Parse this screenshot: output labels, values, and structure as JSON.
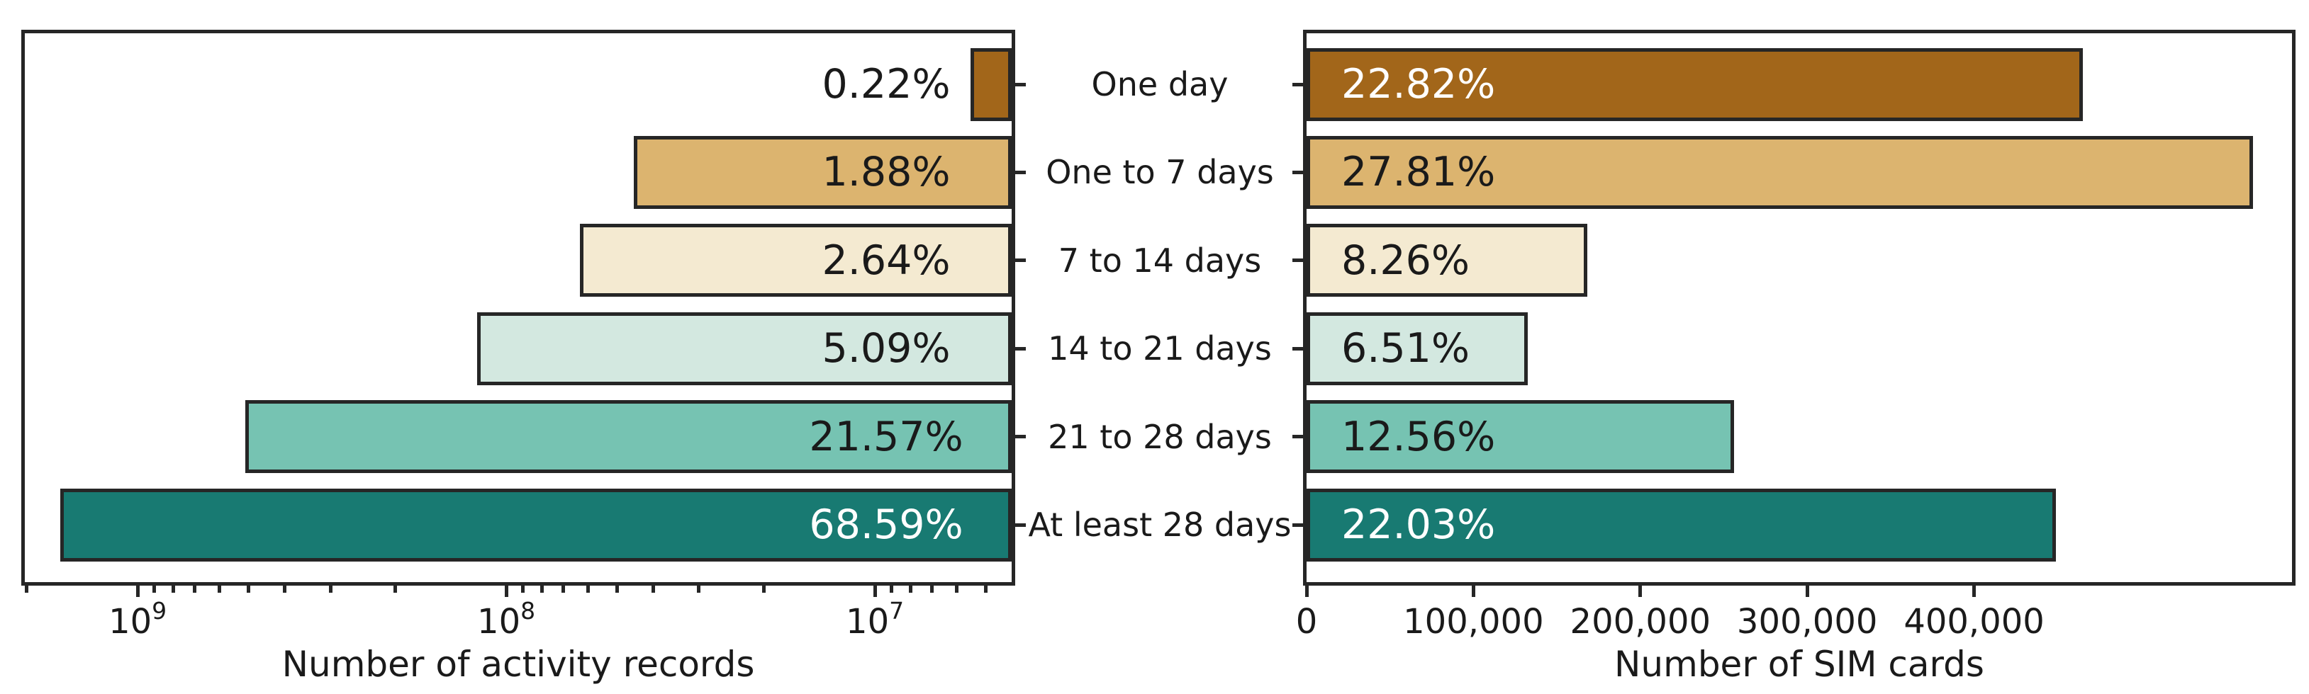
{
  "figure": {
    "background": "#ffffff",
    "outline_color": "#262626",
    "text_color": "#1a1a1a",
    "bar_colors": [
      "#a2661a",
      "#dcb46f",
      "#f4ead1",
      "#d3e8e0",
      "#76c3b2",
      "#187a72"
    ],
    "categories": [
      "One day",
      "One to 7 days",
      "7 to 14 days",
      "14 to 21 days",
      "21 to 28 days",
      "At least 28 days"
    ]
  },
  "chart_data": [
    {
      "type": "bar",
      "panel": "left",
      "orientation": "horizontal",
      "axis_scale": "log10, inverted (values grow to the left), bars anchored at right spine",
      "xlabel": "Number of activity records",
      "categories": [
        "One day",
        "One to 7 days",
        "7 to 14 days",
        "14 to 21 days",
        "21 to 28 days",
        "At least 28 days"
      ],
      "values": [
        5500000,
        45000000,
        63000000,
        120000000,
        510000000,
        1620000000
      ],
      "percent_labels": [
        "0.22%",
        "1.88%",
        "2.64%",
        "5.09%",
        "21.57%",
        "68.59%"
      ],
      "label_colors": [
        "#1a1a1a",
        "#1a1a1a",
        "#1a1a1a",
        "#1a1a1a",
        "#1a1a1a",
        "#ffffff"
      ],
      "xlim": [
        2023000000,
        4256000
      ],
      "xticks": [
        {
          "value": 1000000000,
          "base": "10",
          "exp": "9"
        },
        {
          "value": 100000000,
          "base": "10",
          "exp": "8"
        },
        {
          "value": 10000000,
          "base": "10",
          "exp": "7"
        }
      ],
      "grid": false,
      "legend": false
    },
    {
      "type": "bar",
      "panel": "right",
      "orientation": "horizontal",
      "axis_scale": "linear, bars anchored at left spine",
      "xlabel": "Number of SIM cards",
      "categories": [
        "One day",
        "One to 7 days",
        "7 to 14 days",
        "14 to 21 days",
        "21 to 28 days",
        "At least 28 days"
      ],
      "values": [
        465000,
        567000,
        168400,
        132700,
        256100,
        449200
      ],
      "percent_labels": [
        "22.82%",
        "27.81%",
        "8.26%",
        "6.51%",
        "12.56%",
        "22.03%"
      ],
      "label_colors": [
        "#ffffff",
        "#1a1a1a",
        "#1a1a1a",
        "#1a1a1a",
        "#1a1a1a",
        "#ffffff"
      ],
      "xlim": [
        0,
        590500
      ],
      "xticks": [
        {
          "value": 0,
          "label": "0"
        },
        {
          "value": 100000,
          "label": "100,000"
        },
        {
          "value": 200000,
          "label": "200,000"
        },
        {
          "value": 300000,
          "label": "300,000"
        },
        {
          "value": 400000,
          "label": "400,000"
        }
      ],
      "grid": false,
      "legend": false
    }
  ]
}
